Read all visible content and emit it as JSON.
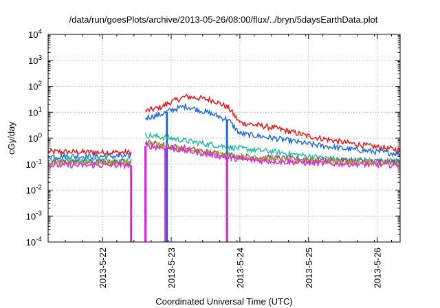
{
  "chart_data": {
    "type": "line",
    "title": "/data/run/goesPlots/archive/2013-05-26/08:00/flux/../bryn/5daysEarthData.plot",
    "xlabel": "Coordinated Universal Time (UTC)",
    "ylabel": "cGy/day",
    "y_scale": "log",
    "ylim": [
      0.0001,
      10000
    ],
    "xlim": [
      "2013-05-21T05:00",
      "2013-05-26T08:00"
    ],
    "x_ticks": [
      "2013-5-22",
      "2013-5-23",
      "2013-5-24",
      "2013-5-25",
      "2013-5-26"
    ],
    "y_ticks": [
      {
        "base": "10",
        "exp": "-4"
      },
      {
        "base": "10",
        "exp": "-3"
      },
      {
        "base": "10",
        "exp": "-2"
      },
      {
        "base": "10",
        "exp": "-1"
      },
      {
        "base": "10",
        "exp": "0"
      },
      {
        "base": "10",
        "exp": "1"
      },
      {
        "base": "10",
        "exp": "2"
      },
      {
        "base": "10",
        "exp": "3"
      },
      {
        "base": "10",
        "exp": "4"
      }
    ],
    "grid": true,
    "legend": "none",
    "series": [
      {
        "color": "#ee1111",
        "gap_from": "2013-05-22T10:00",
        "gap_to": "2013-05-22T15:00",
        "drop_at": [],
        "points": [
          [
            "2013-05-21T05:00",
            0.3
          ],
          [
            "2013-05-22T10:00",
            0.28
          ],
          [
            "2013-05-22T15:00",
            11
          ],
          [
            "2013-05-22T20:00",
            15
          ],
          [
            "2013-05-23T00:00",
            25
          ],
          [
            "2013-05-23T05:00",
            40
          ],
          [
            "2013-05-23T10:00",
            35
          ],
          [
            "2013-05-23T15:00",
            28
          ],
          [
            "2013-05-23T20:00",
            15
          ],
          [
            "2013-05-24T00:00",
            4
          ],
          [
            "2013-05-24T12:00",
            2.5
          ],
          [
            "2013-05-25T00:00",
            1.2
          ],
          [
            "2013-05-25T12:00",
            0.7
          ],
          [
            "2013-05-26T00:00",
            0.45
          ],
          [
            "2013-05-26T08:00",
            0.35
          ]
        ]
      },
      {
        "color": "#1a66dd",
        "gap_from": "2013-05-22T10:00",
        "gap_to": "2013-05-22T15:00",
        "drop_at": [
          "2013-05-22T22:30",
          "2013-05-23T19:30"
        ],
        "points": [
          [
            "2013-05-21T05:00",
            0.2
          ],
          [
            "2013-05-22T10:00",
            0.2
          ],
          [
            "2013-05-22T15:00",
            6
          ],
          [
            "2013-05-22T20:00",
            8
          ],
          [
            "2013-05-23T00:00",
            12
          ],
          [
            "2013-05-23T05:00",
            17
          ],
          [
            "2013-05-23T10:00",
            12
          ],
          [
            "2013-05-23T15:00",
            8
          ],
          [
            "2013-05-23T20:00",
            5
          ],
          [
            "2013-05-24T00:00",
            1.5
          ],
          [
            "2013-05-24T12:00",
            1.0
          ],
          [
            "2013-05-25T00:00",
            0.6
          ],
          [
            "2013-05-25T12:00",
            0.4
          ],
          [
            "2013-05-26T00:00",
            0.3
          ],
          [
            "2013-05-26T08:00",
            0.25
          ]
        ]
      },
      {
        "color": "#22bb99",
        "gap_from": "2013-05-22T10:00",
        "gap_to": "2013-05-22T15:00",
        "drop_at": [],
        "points": [
          [
            "2013-05-21T05:00",
            0.15
          ],
          [
            "2013-05-22T10:00",
            0.14
          ],
          [
            "2013-05-22T15:00",
            1.3
          ],
          [
            "2013-05-23T00:00",
            1.0
          ],
          [
            "2013-05-23T12:00",
            0.6
          ],
          [
            "2013-05-24T00:00",
            0.4
          ],
          [
            "2013-05-24T12:00",
            0.3
          ],
          [
            "2013-05-25T00:00",
            0.2
          ],
          [
            "2013-05-25T12:00",
            0.15
          ],
          [
            "2013-05-26T08:00",
            0.13
          ]
        ]
      },
      {
        "color": "#884488",
        "gap_from": "2013-05-22T10:00",
        "gap_to": "2013-05-22T15:00",
        "drop_at": [],
        "points": [
          [
            "2013-05-21T05:00",
            0.12
          ],
          [
            "2013-05-22T10:00",
            0.12
          ],
          [
            "2013-05-22T15:00",
            0.7
          ],
          [
            "2013-05-23T00:00",
            0.5
          ],
          [
            "2013-05-23T12:00",
            0.3
          ],
          [
            "2013-05-24T00:00",
            0.2
          ],
          [
            "2013-05-25T00:00",
            0.15
          ],
          [
            "2013-05-26T08:00",
            0.12
          ]
        ]
      },
      {
        "color": "#aaaa22",
        "gap_from": "2013-05-22T10:00",
        "gap_to": "2013-05-22T15:00",
        "drop_at": [],
        "points": [
          [
            "2013-05-21T05:00",
            0.11
          ],
          [
            "2013-05-22T10:00",
            0.11
          ],
          [
            "2013-05-22T15:00",
            0.65
          ],
          [
            "2013-05-23T00:00",
            0.45
          ],
          [
            "2013-05-23T12:00",
            0.28
          ],
          [
            "2013-05-24T00:00",
            0.18
          ],
          [
            "2013-05-25T00:00",
            0.13
          ],
          [
            "2013-05-26T08:00",
            0.11
          ]
        ]
      },
      {
        "color": "#dd22dd",
        "gap_from": "2013-05-22T10:00",
        "gap_to": "2013-05-22T15:00",
        "drop_at": [
          "2013-05-22T10:00",
          "2013-05-22T15:00",
          "2013-05-22T22:00",
          "2013-05-23T19:30"
        ],
        "points": [
          [
            "2013-05-21T05:00",
            0.09
          ],
          [
            "2013-05-22T10:00",
            0.09
          ],
          [
            "2013-05-22T15:00",
            0.5
          ],
          [
            "2013-05-23T00:00",
            0.4
          ],
          [
            "2013-05-23T12:00",
            0.25
          ],
          [
            "2013-05-24T00:00",
            0.15
          ],
          [
            "2013-05-25T00:00",
            0.11
          ],
          [
            "2013-05-26T08:00",
            0.09
          ]
        ]
      }
    ]
  }
}
